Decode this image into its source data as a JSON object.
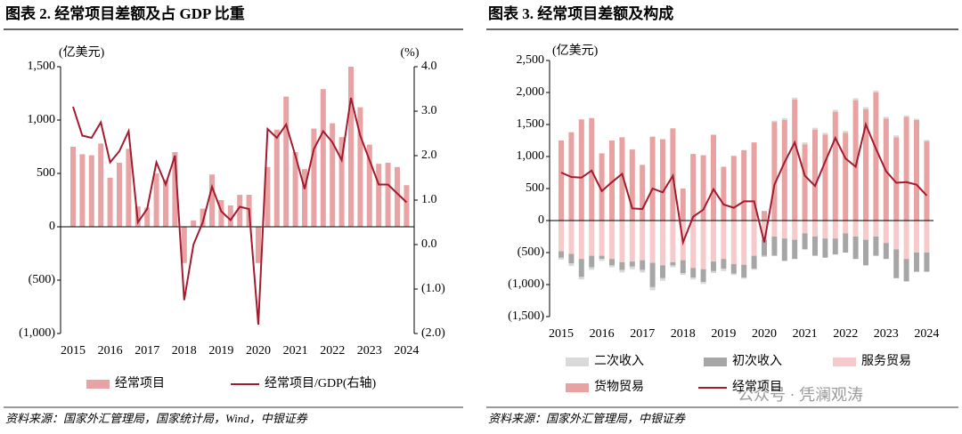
{
  "watermark": "公众号 · 凭澜观涛",
  "chart_data": [
    {
      "type": "combo",
      "title": "图表 2. 经常项目差额及占 GDP 比重",
      "y_label": "(亿美元)",
      "y2_label": "(%)",
      "source": "资料来源：国家外汇管理局，国家统计局，Wind，中银证券",
      "categories": [
        "2015",
        null,
        null,
        null,
        "2016",
        null,
        null,
        null,
        "2017",
        null,
        null,
        null,
        "2018",
        null,
        null,
        null,
        "2019",
        null,
        null,
        null,
        "2020",
        null,
        null,
        null,
        "2021",
        null,
        null,
        null,
        "2022",
        null,
        null,
        null,
        "2023",
        null,
        null,
        null,
        "2024"
      ],
      "series": [
        {
          "name": "经常项目",
          "kind": "bar",
          "color": "#e8a4a4",
          "values": [
            750,
            680,
            670,
            780,
            460,
            600,
            730,
            190,
            180,
            500,
            440,
            700,
            -340,
            60,
            170,
            490,
            250,
            200,
            300,
            300,
            -340,
            560,
            910,
            1220,
            700,
            540,
            920,
            1290,
            970,
            840,
            1500,
            1120,
            770,
            590,
            600,
            560,
            390
          ]
        },
        {
          "name": "经常项目/GDP(右轴)",
          "kind": "line",
          "axis": "y2",
          "color": "#a31b2e",
          "values": [
            3.1,
            2.45,
            2.4,
            2.75,
            1.85,
            2.1,
            2.55,
            0.5,
            0.8,
            1.85,
            1.35,
            2.0,
            -1.25,
            0.0,
            0.5,
            1.3,
            0.75,
            0.55,
            0.85,
            0.8,
            -1.8,
            2.6,
            2.4,
            2.7,
            2.0,
            1.25,
            2.15,
            2.55,
            2.3,
            1.9,
            3.3,
            2.45,
            1.9,
            1.35,
            1.35,
            1.15,
            0.95
          ]
        }
      ],
      "ylim": [
        -1000,
        1500
      ],
      "yticks": [
        {
          "value": 1500,
          "label": "1,500"
        },
        {
          "value": 1000,
          "label": "1,000"
        },
        500,
        0,
        {
          "value": -500,
          "label": "(500)"
        },
        {
          "value": -1000,
          "label": "(1,000)"
        }
      ],
      "y2lim": [
        -2,
        4
      ],
      "y2ticks": [
        {
          "value": 4,
          "label": "4.0"
        },
        {
          "value": 3,
          "label": "3.0"
        },
        {
          "value": 2,
          "label": "2.0"
        },
        {
          "value": 1,
          "label": "1.0"
        },
        {
          "value": 0,
          "label": "0.0"
        },
        {
          "value": -1,
          "label": "(1.0)"
        },
        {
          "value": -2,
          "label": "(2.0)"
        }
      ],
      "negative_tick_color": "#e00000"
    },
    {
      "type": "stacked",
      "title": "图表 3. 经常项目差额及构成",
      "y_label": "(亿美元)",
      "source": "资料来源：国家外汇管理局，中银证券",
      "categories": [
        "2015",
        null,
        null,
        null,
        "2016",
        null,
        null,
        null,
        "2017",
        null,
        null,
        null,
        "2018",
        null,
        null,
        null,
        "2019",
        null,
        null,
        null,
        "2020",
        null,
        null,
        null,
        "2021",
        null,
        null,
        null,
        "2022",
        null,
        null,
        null,
        "2023",
        null,
        null,
        null,
        "2024"
      ],
      "series": [
        {
          "name": "二次收入",
          "kind": "bar",
          "color": "#d9d9d9",
          "values": [
            -30,
            -40,
            -40,
            -40,
            -30,
            -30,
            -40,
            -40,
            -40,
            -50,
            -40,
            -30,
            -30,
            -30,
            -30,
            -30,
            -40,
            -20,
            -20,
            -20,
            -20,
            20,
            30,
            30,
            30,
            30,
            30,
            30,
            30,
            30,
            30,
            30,
            30,
            30,
            20,
            20,
            20
          ]
        },
        {
          "name": "初次收入",
          "kind": "bar",
          "color": "#a6a6a6",
          "values": [
            -100,
            -150,
            -280,
            -180,
            -50,
            -100,
            -120,
            -80,
            -150,
            -380,
            -200,
            -50,
            -200,
            -150,
            -200,
            -150,
            -150,
            -150,
            -200,
            -200,
            -250,
            -300,
            -350,
            -300,
            -250,
            -300,
            -300,
            -250,
            -300,
            -350,
            -400,
            -300,
            -250,
            -450,
            -350,
            -300,
            -300
          ]
        },
        {
          "name": "服务贸易",
          "kind": "bar",
          "color": "#f6caca",
          "values": [
            -480,
            -520,
            -600,
            -550,
            -550,
            -600,
            -650,
            -640,
            -620,
            -660,
            -700,
            -650,
            -620,
            -740,
            -760,
            -640,
            -600,
            -680,
            -690,
            -550,
            -300,
            -250,
            -280,
            -300,
            -200,
            -250,
            -280,
            -280,
            -200,
            -250,
            -300,
            -250,
            -350,
            -450,
            -600,
            -500,
            -500
          ]
        },
        {
          "name": "货物贸易",
          "kind": "bar",
          "color": "#e8a2a2",
          "values": [
            1250,
            1380,
            1580,
            1600,
            1050,
            1250,
            1300,
            1110,
            870,
            1310,
            1270,
            1440,
            500,
            1040,
            1020,
            1340,
            840,
            1010,
            1100,
            1220,
            150,
            1540,
            1570,
            1890,
            1190,
            1420,
            1340,
            1700,
            1370,
            1880,
            1740,
            2000,
            1590,
            1300,
            1620,
            1570,
            1240
          ]
        },
        {
          "name": "经常项目",
          "kind": "line",
          "color": "#a31b2e",
          "values": [
            750,
            680,
            670,
            780,
            460,
            600,
            730,
            190,
            180,
            500,
            440,
            700,
            -340,
            60,
            170,
            490,
            250,
            200,
            300,
            300,
            -340,
            560,
            910,
            1220,
            700,
            540,
            920,
            1290,
            970,
            840,
            1500,
            1120,
            770,
            590,
            600,
            560,
            390
          ]
        }
      ],
      "ylim": [
        -1500,
        2500
      ],
      "yticks": [
        {
          "value": 2500,
          "label": "2,500"
        },
        {
          "value": 2000,
          "label": "2,000"
        },
        {
          "value": 1500,
          "label": "1,500"
        },
        {
          "value": 1000,
          "label": "1,000"
        },
        500,
        0,
        {
          "value": -500,
          "label": "(500)"
        },
        {
          "value": -1000,
          "label": "(1,000)"
        },
        {
          "value": -1500,
          "label": "(1,500)"
        }
      ],
      "negative_tick_color": "#e00000"
    }
  ]
}
